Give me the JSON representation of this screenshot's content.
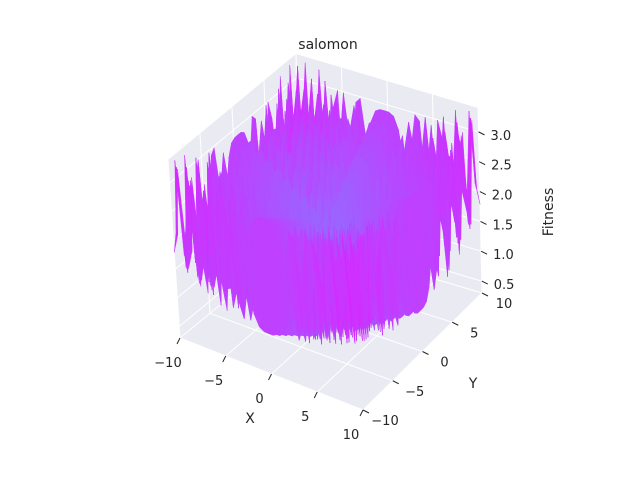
{
  "chart_data": {
    "type": "surface-3d",
    "title": "salomon",
    "xlabel": "X",
    "ylabel": "Y",
    "zlabel": "Fitness",
    "xlim": [
      -10,
      10
    ],
    "ylim": [
      -10,
      10
    ],
    "zlim": [
      0.3,
      3.4
    ],
    "x_ticks": [
      "−10",
      "−5",
      "0",
      "5",
      "10"
    ],
    "y_ticks": [
      "−10",
      "−5",
      "0",
      "5",
      "10"
    ],
    "z_ticks": [
      "0.5",
      "1.0",
      "1.5",
      "2.0",
      "2.5",
      "3.0"
    ],
    "colormap": "cool",
    "colormap_colors": [
      "#00ffff",
      "#ff00ff"
    ],
    "pane_color": "#eaeaf2",
    "grid": true,
    "function": "salomon",
    "surface_note": "z values above the plotted range are clipped; center basin values lie below the lower z limit"
  }
}
